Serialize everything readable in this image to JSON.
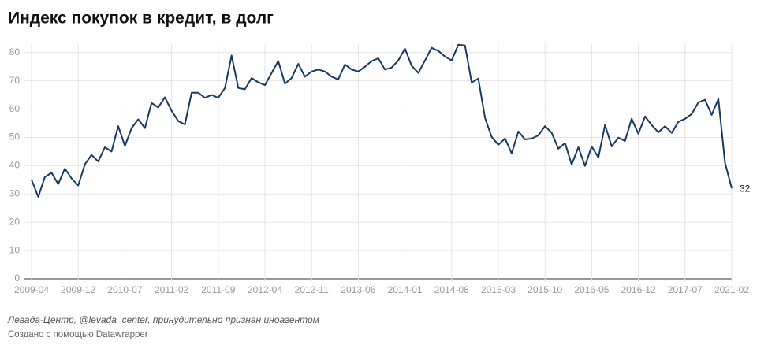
{
  "chart_data": {
    "type": "line",
    "title": "Индекс покупок в кредит, в долг",
    "source": "Левада-Центр, @levada_center, принудительно признан иноагентом",
    "credit": "Создано с помощью Datawrapper",
    "categories": [
      "2009-04",
      null,
      null,
      null,
      null,
      null,
      null,
      "2009-12",
      null,
      null,
      null,
      null,
      null,
      null,
      "2010-07",
      null,
      null,
      null,
      null,
      null,
      null,
      "2011-02",
      null,
      null,
      null,
      null,
      null,
      null,
      "2011-09",
      null,
      null,
      null,
      null,
      null,
      null,
      "2012-04",
      null,
      null,
      null,
      null,
      null,
      null,
      "2012-11",
      null,
      null,
      null,
      null,
      null,
      null,
      "2013-06",
      null,
      null,
      null,
      null,
      null,
      null,
      "2014-01",
      null,
      null,
      null,
      null,
      null,
      null,
      "2014-08",
      null,
      null,
      null,
      null,
      null,
      null,
      "2015-03",
      null,
      null,
      null,
      null,
      null,
      null,
      "2015-10",
      null,
      null,
      null,
      null,
      null,
      null,
      "2016-05",
      null,
      null,
      null,
      null,
      null,
      null,
      "2016-12",
      null,
      null,
      null,
      null,
      null,
      null,
      "2017-07",
      null,
      null,
      null,
      null,
      null,
      null,
      "2021-02"
    ],
    "series": [
      {
        "color": "#173a64",
        "values": [
          35,
          29,
          36,
          37.5,
          33.5,
          39,
          35.5,
          33,
          40.5,
          43.8,
          41.5,
          46.5,
          45,
          54,
          47,
          53.3,
          56.4,
          53.3,
          62.2,
          60.6,
          64.2,
          59.4,
          55.8,
          54.6,
          65.8,
          65.8,
          64,
          65,
          64,
          67.5,
          79,
          67.5,
          67,
          71,
          69.5,
          68.5,
          72.8,
          77,
          69,
          71,
          76,
          71.5,
          73.3,
          74,
          73.3,
          71.5,
          70.5,
          75.8,
          74,
          73.3,
          75,
          77,
          78,
          74,
          74.7,
          77.2,
          81.4,
          75.3,
          72.8,
          77.2,
          81.7,
          80.6,
          78.6,
          77.2,
          82.8,
          82.5,
          69.4,
          70.8,
          56.9,
          50.2,
          47.4,
          49.6,
          44.3,
          52.1,
          49.3,
          49.6,
          50.7,
          54,
          51.6,
          46,
          48,
          40.4,
          46.5,
          39.9,
          46.8,
          42.9,
          54.4,
          46.8,
          49.9,
          48.8,
          56.6,
          51.3,
          57.4,
          54.4,
          51.8,
          54,
          51.6,
          55.5,
          56.6,
          58.3,
          62.4,
          63.3,
          58,
          63.6,
          41,
          32
        ]
      }
    ],
    "ylim": [
      0,
      83
    ],
    "yticks": [
      0,
      10,
      20,
      30,
      40,
      50,
      60,
      70,
      80
    ],
    "grid": true
  }
}
